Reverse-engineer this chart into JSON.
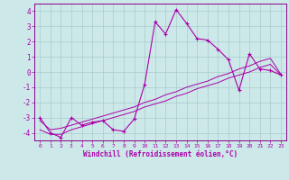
{
  "xlabel": "Windchill (Refroidissement éolien,°C)",
  "background_color": "#cce8e8",
  "grid_color": "#aacccc",
  "line_color": "#aa00aa",
  "spine_color": "#880088",
  "x_data": [
    0,
    1,
    2,
    3,
    4,
    5,
    6,
    7,
    8,
    9,
    10,
    11,
    12,
    13,
    14,
    15,
    16,
    17,
    18,
    19,
    20,
    21,
    22,
    23
  ],
  "y_main": [
    -3.0,
    -4.0,
    -4.3,
    -3.0,
    -3.5,
    -3.3,
    -3.2,
    -3.8,
    -3.9,
    -3.1,
    -0.8,
    3.3,
    2.5,
    4.1,
    3.2,
    2.2,
    2.1,
    1.5,
    0.8,
    -1.2,
    1.2,
    0.2,
    0.1,
    -0.2
  ],
  "y_line1": [
    -3.8,
    -4.1,
    -4.1,
    -3.8,
    -3.6,
    -3.4,
    -3.2,
    -3.0,
    -2.8,
    -2.6,
    -2.3,
    -2.1,
    -1.9,
    -1.6,
    -1.4,
    -1.1,
    -0.9,
    -0.7,
    -0.4,
    -0.2,
    0.0,
    0.3,
    0.5,
    -0.2
  ],
  "y_line2": [
    -3.2,
    -3.8,
    -3.7,
    -3.5,
    -3.3,
    -3.1,
    -2.9,
    -2.7,
    -2.5,
    -2.3,
    -2.0,
    -1.8,
    -1.5,
    -1.3,
    -1.0,
    -0.8,
    -0.6,
    -0.3,
    -0.1,
    0.2,
    0.4,
    0.7,
    0.9,
    -0.15
  ],
  "ylim": [
    -4.5,
    4.5
  ],
  "xlim": [
    -0.5,
    23.5
  ],
  "yticks": [
    -4,
    -3,
    -2,
    -1,
    0,
    1,
    2,
    3,
    4
  ],
  "xticks": [
    0,
    1,
    2,
    3,
    4,
    5,
    6,
    7,
    8,
    9,
    10,
    11,
    12,
    13,
    14,
    15,
    16,
    17,
    18,
    19,
    20,
    21,
    22,
    23
  ],
  "figsize": [
    3.2,
    2.0
  ],
  "dpi": 100
}
